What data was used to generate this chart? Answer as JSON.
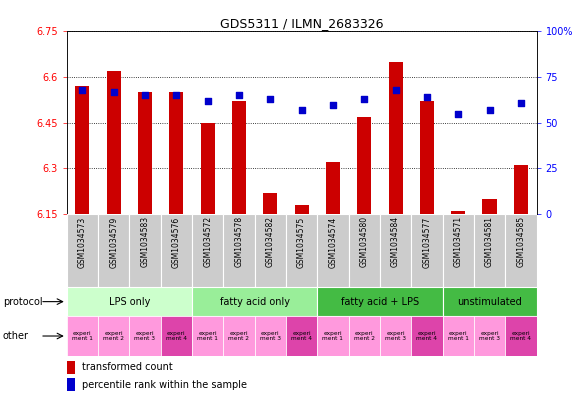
{
  "title": "GDS5311 / ILMN_2683326",
  "samples": [
    "GSM1034573",
    "GSM1034579",
    "GSM1034583",
    "GSM1034576",
    "GSM1034572",
    "GSM1034578",
    "GSM1034582",
    "GSM1034575",
    "GSM1034574",
    "GSM1034580",
    "GSM1034584",
    "GSM1034577",
    "GSM1034571",
    "GSM1034581",
    "GSM1034585"
  ],
  "transformed_count": [
    6.57,
    6.62,
    6.55,
    6.55,
    6.45,
    6.52,
    6.22,
    6.18,
    6.32,
    6.47,
    6.65,
    6.52,
    6.16,
    6.2,
    6.31
  ],
  "percentile_rank": [
    68,
    67,
    65,
    65,
    62,
    65,
    63,
    57,
    60,
    63,
    68,
    64,
    55,
    57,
    61
  ],
  "ylim_left": [
    6.15,
    6.75
  ],
  "ylim_right": [
    0,
    100
  ],
  "yticks_left": [
    6.15,
    6.3,
    6.45,
    6.6,
    6.75
  ],
  "yticks_right": [
    0,
    25,
    50,
    75,
    100
  ],
  "ytick_labels_left": [
    "6.15",
    "6.3",
    "6.45",
    "6.6",
    "6.75"
  ],
  "ytick_labels_right": [
    "0",
    "25",
    "50",
    "75",
    "100%"
  ],
  "bar_color": "#cc0000",
  "dot_color": "#0000cc",
  "bar_bottom": 6.15,
  "proto_info": [
    {
      "label": "LPS only",
      "start": 0,
      "end": 4,
      "color": "#ccffcc"
    },
    {
      "label": "fatty acid only",
      "start": 4,
      "end": 8,
      "color": "#99ee99"
    },
    {
      "label": "fatty acid + LPS",
      "start": 8,
      "end": 12,
      "color": "#44bb44"
    },
    {
      "label": "unstimulated",
      "start": 12,
      "end": 15,
      "color": "#44bb44"
    }
  ],
  "other_labels": [
    "experi\nment 1",
    "experi\nment 2",
    "experi\nment 3",
    "experi\nment 4",
    "experi\nment 1",
    "experi\nment 2",
    "experi\nment 3",
    "experi\nment 4",
    "experi\nment 1",
    "experi\nment 2",
    "experi\nment 3",
    "experi\nment 4",
    "experi\nment 1",
    "experi\nment 3",
    "experi\nment 4"
  ],
  "exp4_indices": [
    3,
    7,
    11,
    14
  ],
  "pink_light": "#ff99dd",
  "pink_dark": "#dd44aa",
  "sample_bg_color": "#cccccc",
  "legend_red_label": "transformed count",
  "legend_blue_label": "percentile rank within the sample"
}
